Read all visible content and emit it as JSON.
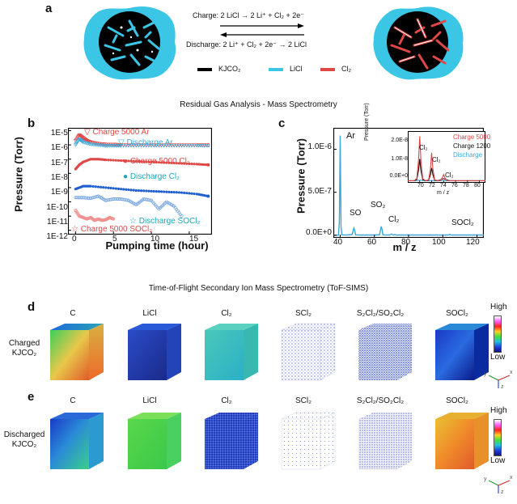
{
  "panel_a": {
    "letter": "a",
    "charge_eq": "Charge: 2 LiCl → 2 Li⁺ + Cl₂ + 2e⁻",
    "discharge_eq": "Discharge: 2 Li⁺ + Cl₂ + 2e⁻ → 2 LiCl",
    "legend": [
      {
        "label": "KJCO₂",
        "color": "#000000"
      },
      {
        "label": "LiCl",
        "color": "#3cc6e6"
      },
      {
        "label": "Cl₂",
        "color": "#e04848"
      }
    ]
  },
  "rga_title": "Residual Gas Analysis - Mass Spectrometry",
  "panel_b": {
    "letter": "b",
    "ylabel": "Pressure (Torr)",
    "xlabel": "Pumping time (hour)",
    "yticks": [
      "1E-5",
      "1E-6",
      "1E-7",
      "1E-8",
      "1E-9",
      "1E-10",
      "1E-11",
      "1E-12"
    ],
    "xticks": [
      "0",
      "5",
      "10",
      "15"
    ],
    "annotations": [
      {
        "text": "▽ Charge 5000 Ar",
        "color": "#e04848"
      },
      {
        "text": "▽ Discharge Ar",
        "color": "#3ca8d8"
      },
      {
        "text": "● Charge 5000 Cl₂",
        "color": "#e04848"
      },
      {
        "text": "● Discharge Cl₂",
        "color": "#17a8b8"
      },
      {
        "text": "☆ Discharge SOCl₂",
        "color": "#17a8b8"
      },
      {
        "text": "☆ Charge 5000 SOCl₂",
        "color": "#e04848"
      }
    ]
  },
  "panel_c": {
    "letter": "c",
    "ylabel": "Pressure (Torr)",
    "xlabel": "m / z",
    "yticks": [
      "1.0E-6",
      "5.0E-7",
      "0.0E+0"
    ],
    "xticks": [
      "40",
      "60",
      "80",
      "100",
      "120"
    ],
    "peak_labels": [
      "Ar",
      "SO",
      "SO₂",
      "Cl₂",
      "SOCl₂"
    ],
    "inset": {
      "ylabel": "Pressure (Torr)",
      "xlabel": "m / z",
      "yticks": [
        "2.0E-8",
        "1.0E-8",
        "0.0E+0"
      ],
      "xticks": [
        "70",
        "72",
        "74",
        "76",
        "78",
        "80"
      ],
      "peak_labels": [
        "Cl₂",
        "Cl₂",
        "Cl₂"
      ],
      "legend": [
        {
          "label": "Charge 5000",
          "color": "#e04848"
        },
        {
          "label": "Charge 1200",
          "color": "#111111"
        },
        {
          "label": "Discharge",
          "color": "#3ca8d8"
        }
      ]
    }
  },
  "tof_title": "Time-of-Flight Secondary Ion Mass Spectrometry (ToF-SIMS)",
  "panel_d": {
    "letter": "d",
    "row_label_1": "Charged",
    "row_label_2": "KJCO₂",
    "columns": [
      "C",
      "LiCl",
      "Cl₂",
      "SCl₂",
      "S₂Cl₂/SO₂Cl₂",
      "SOCl₂"
    ]
  },
  "panel_e": {
    "letter": "e",
    "row_label_1": "Discharged",
    "row_label_2": "KJCO₂",
    "columns": [
      "C",
      "LiCl",
      "Cl₂",
      "SCl₂",
      "S₂Cl₂/SO₂Cl₂",
      "SOCl₂"
    ]
  },
  "colorbar": {
    "high": "High",
    "low": "Low"
  },
  "axes_glyph": {
    "x": "x",
    "y": "y",
    "z": "z"
  },
  "chart_data": [
    {
      "type": "scatter",
      "xlabel": "Pumping time (hour)",
      "ylabel": "Pressure (Torr)",
      "xlim": [
        -1,
        18
      ],
      "ylim_log10": [
        -12.3,
        -4.8
      ],
      "yscale": "log",
      "series": [
        {
          "name": "Charge 5000 Ar",
          "marker": "triangle-down",
          "color": "#e04848",
          "x": [
            0,
            0.5,
            1,
            1.5,
            2,
            3,
            4,
            5,
            6,
            8,
            10,
            12,
            14,
            16,
            17.5
          ],
          "y_log10": [
            -5.7,
            -5.3,
            -5.5,
            -5.7,
            -5.8,
            -5.9,
            -5.95,
            -5.95,
            -6.0,
            -6.0,
            -6.0,
            -6.0,
            -6.0,
            -6.0,
            -6.0
          ]
        },
        {
          "name": "Discharge Ar",
          "marker": "triangle-down",
          "color": "#3ca8d8",
          "x": [
            0,
            0.5,
            1,
            2,
            3,
            4,
            5,
            6,
            8,
            10,
            12,
            14,
            16,
            17.5
          ],
          "y_log10": [
            -6.0,
            -5.6,
            -5.8,
            -5.95,
            -6.0,
            -6.05,
            -6.05,
            -6.05,
            -6.05,
            -6.05,
            -6.05,
            -6.05,
            -6.05,
            -6.05
          ]
        },
        {
          "name": "Charge 5000 Cl₂",
          "marker": "circle",
          "color": "#e04848",
          "x": [
            0,
            0.5,
            1,
            2,
            3,
            4,
            6,
            8,
            10,
            12,
            14,
            16,
            17.5
          ],
          "y_log10": [
            -7.7,
            -7.4,
            -7.2,
            -7.0,
            -7.0,
            -7.05,
            -7.1,
            -7.15,
            -7.2,
            -7.25,
            -7.3,
            -7.35,
            -7.4
          ]
        },
        {
          "name": "Discharge Cl₂",
          "marker": "circle",
          "color": "#1f5fd0",
          "x": [
            0,
            1,
            2,
            4,
            6,
            8,
            10,
            12,
            14,
            16,
            17.5
          ],
          "y_log10": [
            -9.1,
            -8.9,
            -8.9,
            -9.0,
            -9.1,
            -9.2,
            -9.25,
            -9.3,
            -9.35,
            -9.45,
            -9.6
          ]
        },
        {
          "name": "Discharge SOCl₂",
          "marker": "star",
          "color": "#7aa8e0",
          "x": [
            0,
            1,
            2,
            3,
            4,
            5,
            6,
            7,
            8,
            9,
            10,
            11,
            12,
            13,
            14
          ],
          "y_log10": [
            -9.7,
            -9.7,
            -9.75,
            -9.6,
            -9.9,
            -9.8,
            -9.8,
            -9.9,
            -10.2,
            -9.8,
            -9.9,
            -10.5,
            -10.0,
            -10.3,
            -11.0
          ]
        },
        {
          "name": "Charge 5000 SOCl₂",
          "marker": "star",
          "color": "#f09090",
          "x": [
            0,
            0.5,
            1,
            1.5,
            2,
            2.5,
            3,
            3.5,
            4,
            4.5,
            5
          ],
          "y_log10": [
            -10.6,
            -11.0,
            -11.1,
            -11.2,
            -11.1,
            -11.3,
            -11.2,
            -11.3,
            -11.25,
            -11.1,
            -11.2
          ]
        }
      ]
    },
    {
      "type": "line",
      "xlabel": "m / z",
      "ylabel": "Pressure (Torr)",
      "xlim": [
        36,
        124
      ],
      "ylim": [
        -3e-08,
        1.25e-06
      ],
      "series": [
        {
          "name": "Discharge",
          "color": "#3ca8d8",
          "x": [
            36,
            38,
            39,
            39.5,
            40,
            40.5,
            41,
            44,
            47,
            48,
            48.5,
            49,
            52,
            60,
            63,
            64,
            64.5,
            65,
            69,
            70,
            71,
            72,
            73,
            74,
            86,
            100,
            103,
            104,
            105,
            124
          ],
          "y": [
            1e-09,
            1e-09,
            2e-09,
            1.5e-07,
            1.16e-06,
            1e-07,
            5e-09,
            4e-09,
            1e-08,
            8.5e-08,
            6e-08,
            5e-09,
            3e-09,
            3e-09,
            6e-09,
            1.03e-07,
            7e-08,
            5e-09,
            3e-09,
            1.5e-08,
            2e-09,
            8e-09,
            2e-09,
            3e-09,
            3e-09,
            3e-09,
            3e-09,
            1e-08,
            3e-09,
            3e-09
          ]
        }
      ]
    },
    {
      "type": "line",
      "xlabel": "m / z",
      "ylabel": "Pressure (Torr)",
      "xlim": [
        68,
        81
      ],
      "ylim": [
        -1e-09,
        2.4e-08
      ],
      "series": [
        {
          "name": "Charge 5000",
          "color": "#e04848",
          "x": [
            68,
            69,
            69.5,
            69.8,
            70,
            70.2,
            70.5,
            71,
            71.5,
            71.8,
            72,
            72.2,
            72.5,
            73,
            73.5,
            73.8,
            74,
            74.2,
            74.5,
            75,
            76,
            78,
            80,
            81
          ],
          "y": [
            0,
            0,
            1e-09,
            1e-08,
            2.15e-08,
            1e-08,
            1e-09,
            0,
            5e-10,
            6e-09,
            1.35e-08,
            6e-09,
            5e-10,
            0,
            2e-10,
            1.5e-09,
            3e-09,
            1.5e-09,
            2e-10,
            0,
            0,
            0,
            0,
            0
          ]
        },
        {
          "name": "Charge 1200",
          "color": "#111111",
          "x": [
            68,
            69,
            69.5,
            69.8,
            70,
            70.2,
            70.5,
            71,
            71.5,
            71.8,
            72,
            72.2,
            72.5,
            73,
            74,
            75,
            76,
            78,
            80,
            81
          ],
          "y": [
            0,
            0,
            5e-10,
            5e-09,
            1.05e-08,
            5e-09,
            5e-10,
            0,
            2e-10,
            3e-09,
            6.2e-09,
            3e-09,
            2e-10,
            0,
            1e-09,
            0,
            0,
            0,
            0,
            0
          ]
        },
        {
          "name": "Discharge",
          "color": "#3ca8d8",
          "x": [
            68,
            69,
            70,
            71,
            72,
            73,
            74,
            75,
            76,
            78,
            80,
            81
          ],
          "y": [
            0,
            0,
            3e-10,
            0,
            1e-10,
            0,
            0,
            0,
            0,
            0,
            0,
            0
          ]
        }
      ]
    }
  ]
}
